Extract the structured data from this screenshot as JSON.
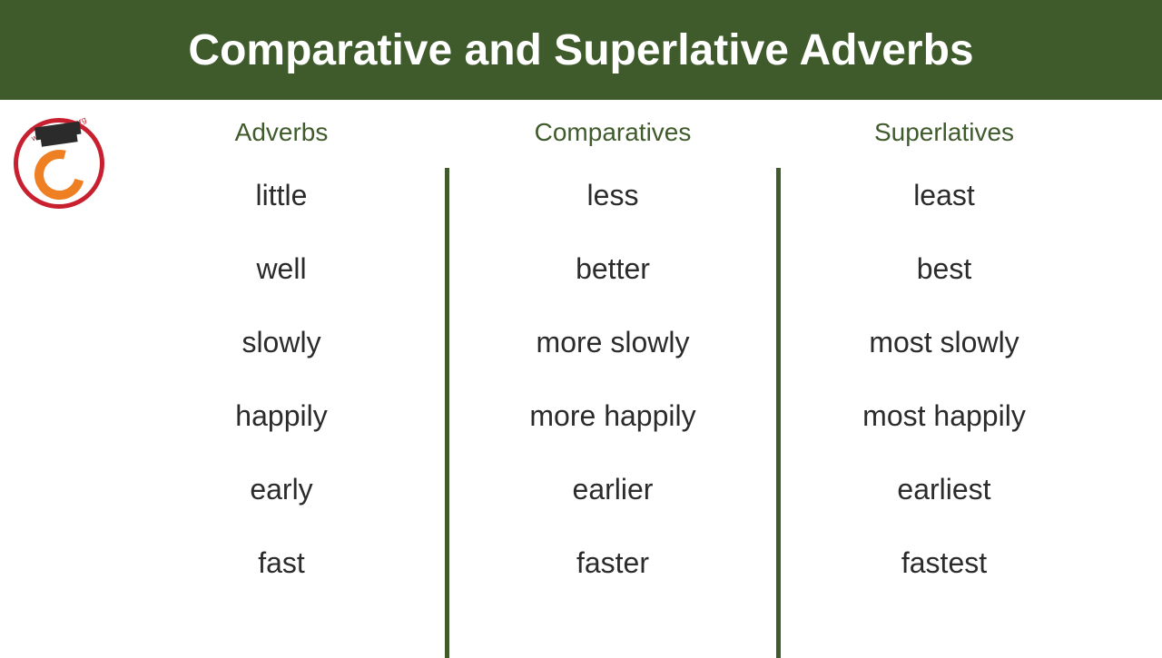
{
  "header": {
    "title": "Comparative and Superlative Adverbs",
    "background_color": "#3f5b2b",
    "text_color": "#ffffff",
    "font_size": 48
  },
  "logo": {
    "border_color": "#c8202f",
    "accent_color": "#ef7f23",
    "cap_color": "#2b2b2b",
    "text": "www.engdic.org"
  },
  "table": {
    "header_color": "#3f5b2b",
    "header_font_size": 28,
    "body_color": "#2b2b2b",
    "body_font_size": 32,
    "divider_color": "#3f5b2b",
    "columns": [
      {
        "header": "Adverbs",
        "rows": [
          "little",
          "well",
          "slowly",
          "happily",
          "early",
          "fast"
        ]
      },
      {
        "header": "Comparatives",
        "rows": [
          "less",
          "better",
          "more slowly",
          "more happily",
          "earlier",
          "faster"
        ]
      },
      {
        "header": "Superlatives",
        "rows": [
          "least",
          "best",
          "most slowly",
          "most happily",
          "earliest",
          "fastest"
        ]
      }
    ]
  }
}
